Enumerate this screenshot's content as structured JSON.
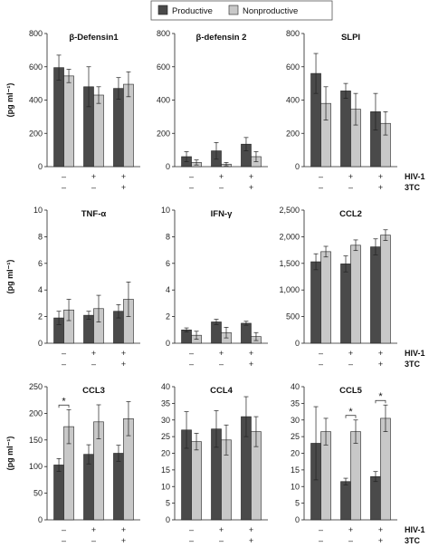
{
  "legend": [
    {
      "label": "Productive",
      "color": "#4a4a4a"
    },
    {
      "label": "Nonproductive",
      "color": "#c8c8c8"
    }
  ],
  "condition_labels": {
    "row1": "HIV-1",
    "row2": "3TC"
  },
  "ylabel": "(pg ml⁻¹)",
  "chart_data": [
    {
      "type": "bar",
      "title": "β-Defensin1",
      "categories": [
        "–/–",
        "+/–",
        "+/+"
      ],
      "ylim": [
        0,
        800
      ],
      "yticks": [
        0,
        200,
        400,
        600,
        800
      ],
      "ytick_labels": [
        "0",
        "200",
        "400",
        "600",
        "800"
      ],
      "series": [
        {
          "name": "Productive",
          "values": [
            595,
            480,
            470
          ],
          "errors": [
            75,
            120,
            65
          ]
        },
        {
          "name": "Nonproductive",
          "values": [
            545,
            430,
            495
          ],
          "errors": [
            40,
            50,
            75
          ]
        }
      ],
      "significance": []
    },
    {
      "type": "bar",
      "title": "β-defensin 2",
      "categories": [
        "–/–",
        "+/–",
        "+/+"
      ],
      "ylim": [
        0,
        800
      ],
      "yticks": [
        0,
        200,
        400,
        600,
        800
      ],
      "ytick_labels": [
        "0",
        "200",
        "400",
        "600",
        "800"
      ],
      "series": [
        {
          "name": "Productive",
          "values": [
            60,
            95,
            135
          ],
          "errors": [
            30,
            50,
            40
          ]
        },
        {
          "name": "Nonproductive",
          "values": [
            25,
            15,
            60
          ],
          "errors": [
            15,
            10,
            30
          ]
        }
      ],
      "significance": []
    },
    {
      "type": "bar",
      "title": "SLPI",
      "categories": [
        "–/–",
        "+/–",
        "+/+"
      ],
      "ylim": [
        0,
        800
      ],
      "yticks": [
        0,
        200,
        400,
        600,
        800
      ],
      "ytick_labels": [
        "0",
        "200",
        "400",
        "600",
        "800"
      ],
      "series": [
        {
          "name": "Productive",
          "values": [
            560,
            455,
            330
          ],
          "errors": [
            120,
            45,
            110
          ]
        },
        {
          "name": "Nonproductive",
          "values": [
            380,
            345,
            260
          ],
          "errors": [
            100,
            95,
            70
          ]
        }
      ],
      "significance": []
    },
    {
      "type": "bar",
      "title": "TNF-α",
      "categories": [
        "–/–",
        "+/–",
        "+/+"
      ],
      "ylim": [
        0,
        10
      ],
      "yticks": [
        0,
        2,
        4,
        6,
        8,
        10
      ],
      "ytick_labels": [
        "0",
        "2",
        "4",
        "6",
        "8",
        "10"
      ],
      "series": [
        {
          "name": "Productive",
          "values": [
            1.9,
            2.1,
            2.4
          ],
          "errors": [
            0.5,
            0.3,
            0.5
          ]
        },
        {
          "name": "Nonproductive",
          "values": [
            2.5,
            2.6,
            3.3
          ],
          "errors": [
            0.8,
            1.0,
            1.3
          ]
        }
      ],
      "significance": []
    },
    {
      "type": "bar",
      "title": "IFN-γ",
      "categories": [
        "–/–",
        "+/–",
        "+/+"
      ],
      "ylim": [
        0,
        10
      ],
      "yticks": [
        0,
        2,
        4,
        6,
        8,
        10
      ],
      "ytick_labels": [
        "0",
        "2",
        "4",
        "6",
        "8",
        "10"
      ],
      "series": [
        {
          "name": "Productive",
          "values": [
            1.0,
            1.6,
            1.5
          ],
          "errors": [
            0.15,
            0.2,
            0.15
          ]
        },
        {
          "name": "Nonproductive",
          "values": [
            0.6,
            0.8,
            0.5
          ],
          "errors": [
            0.3,
            0.4,
            0.3
          ]
        }
      ],
      "significance": []
    },
    {
      "type": "bar",
      "title": "CCL2",
      "categories": [
        "–/–",
        "+/–",
        "+/+"
      ],
      "ylim": [
        0,
        2500
      ],
      "yticks": [
        0,
        500,
        1000,
        1500,
        2000,
        2500
      ],
      "ytick_labels": [
        "0",
        "500",
        "1,000",
        "1,500",
        "2,000",
        "2,500"
      ],
      "series": [
        {
          "name": "Productive",
          "values": [
            1530,
            1490,
            1810
          ],
          "errors": [
            150,
            150,
            150
          ]
        },
        {
          "name": "Nonproductive",
          "values": [
            1720,
            1840,
            2030
          ],
          "errors": [
            100,
            100,
            100
          ]
        }
      ],
      "significance": []
    },
    {
      "type": "bar",
      "title": "CCL3",
      "categories": [
        "–/–",
        "+/–",
        "+/+"
      ],
      "ylim": [
        0,
        250
      ],
      "yticks": [
        0,
        50,
        100,
        150,
        200,
        250
      ],
      "ytick_labels": [
        "0",
        "50",
        "100",
        "150",
        "200",
        "250"
      ],
      "series": [
        {
          "name": "Productive",
          "values": [
            103,
            123,
            125
          ],
          "errors": [
            12,
            18,
            15
          ]
        },
        {
          "name": "Nonproductive",
          "values": [
            175,
            184,
            190
          ],
          "errors": [
            32,
            32,
            32
          ]
        }
      ],
      "significance": [
        {
          "category": 0,
          "label": "*"
        }
      ]
    },
    {
      "type": "bar",
      "title": "CCL4",
      "categories": [
        "–/–",
        "+/–",
        "+/+"
      ],
      "ylim": [
        0,
        40
      ],
      "yticks": [
        0,
        5,
        10,
        15,
        20,
        25,
        30,
        35,
        40
      ],
      "ytick_labels": [
        "0",
        "5",
        "10",
        "15",
        "20",
        "25",
        "30",
        "35",
        "40"
      ],
      "series": [
        {
          "name": "Productive",
          "values": [
            27,
            27.3,
            31
          ],
          "errors": [
            5.5,
            5.5,
            6
          ]
        },
        {
          "name": "Nonproductive",
          "values": [
            23.5,
            24,
            26.5
          ],
          "errors": [
            2.5,
            4.5,
            4.5
          ]
        }
      ],
      "significance": []
    },
    {
      "type": "bar",
      "title": "CCL5",
      "categories": [
        "–/–",
        "+/–",
        "+/+"
      ],
      "ylim": [
        0,
        40
      ],
      "yticks": [
        0,
        5,
        10,
        15,
        20,
        25,
        30,
        35,
        40
      ],
      "ytick_labels": [
        "0",
        "5",
        "10",
        "15",
        "20",
        "25",
        "30",
        "35",
        "40"
      ],
      "series": [
        {
          "name": "Productive",
          "values": [
            23,
            11.5,
            13
          ],
          "errors": [
            11,
            1,
            1.5
          ]
        },
        {
          "name": "Nonproductive",
          "values": [
            26.5,
            26.5,
            30.5
          ],
          "errors": [
            4,
            3.5,
            4
          ]
        }
      ],
      "significance": [
        {
          "category": 1,
          "label": "*"
        },
        {
          "category": 2,
          "label": "*"
        }
      ]
    }
  ],
  "conditions": {
    "hiv": [
      "–",
      "+",
      "+"
    ],
    "tc": [
      "–",
      "–",
      "+"
    ]
  }
}
